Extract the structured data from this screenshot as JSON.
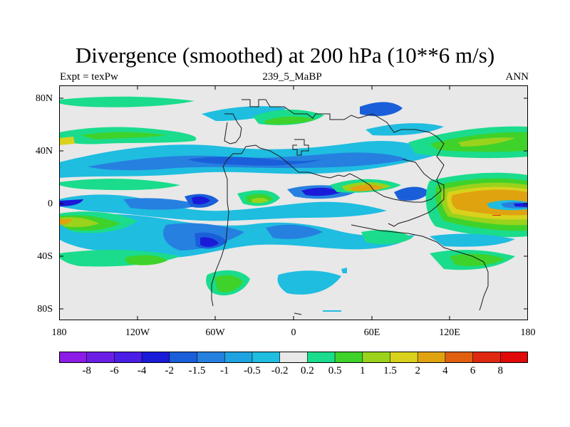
{
  "title": "Divergence (smoothed) at 200 hPa (10**6 m/s)",
  "subtitle_left": "Expt = texPw",
  "subtitle_center": "239_5_MaBP",
  "subtitle_right": "ANN",
  "axes": {
    "y_ticks": [
      "80N",
      "40N",
      "0",
      "40S",
      "80S"
    ],
    "x_ticks": [
      "180",
      "120W",
      "60W",
      "0",
      "60E",
      "120E",
      "180"
    ]
  },
  "colorbar": {
    "labels": [
      "-8",
      "-6",
      "-4",
      "-2",
      "-1.5",
      "-1",
      "-0.5",
      "-0.2",
      "0.2",
      "0.5",
      "1",
      "1.5",
      "2",
      "4",
      "6",
      "8"
    ],
    "colors": [
      "#8c1ce6",
      "#6b1fe6",
      "#4a1ee6",
      "#1a1ad9",
      "#1a5fd9",
      "#2680e0",
      "#1fa3e0",
      "#1fbde0",
      "#e8e8e8",
      "#1adc8c",
      "#3fd22a",
      "#9ad21c",
      "#d9d21c",
      "#e0a310",
      "#e06010",
      "#e02810",
      "#e00a0a"
    ]
  },
  "colors": {
    "background": "#e8e8e8",
    "coast": "#1a1a1a"
  }
}
